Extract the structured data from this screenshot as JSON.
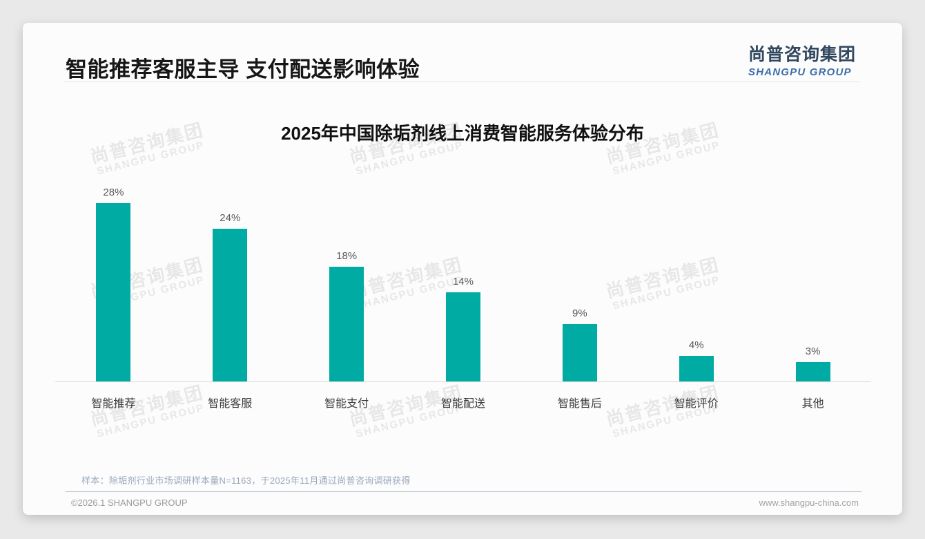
{
  "header": {
    "title": "智能推荐客服主导 支付配送影响体验"
  },
  "logo": {
    "chinese": "尚普咨询集团",
    "english": "SHANGPU GROUP"
  },
  "watermark": {
    "text_cn": "尚普咨询集团",
    "text_en": "SHANGPU GROUP"
  },
  "chart_data": {
    "type": "bar",
    "title": "2025年中国除垢剂线上消费智能服务体验分布",
    "categories": [
      "智能推荐",
      "智能客服",
      "智能支付",
      "智能配送",
      "智能售后",
      "智能评价",
      "其他"
    ],
    "values": [
      28,
      24,
      18,
      14,
      9,
      4,
      3
    ],
    "unit": "%",
    "value_labels": [
      "28%",
      "24%",
      "18%",
      "14%",
      "9%",
      "4%",
      "3%"
    ],
    "bar_color": "#00aba4",
    "xlabel": "",
    "ylabel": "",
    "ylim": [
      0,
      30
    ],
    "grid": false,
    "legend": "none",
    "baseline_color": "#d9d9d9"
  },
  "notes": {
    "source": "样本：除垢剂行业市场调研样本量N=1163，于2025年11月通过尚普咨询调研获得"
  },
  "footer": {
    "copyright": "©2026.1 SHANGPU GROUP",
    "website": "www.shangpu-china.com"
  }
}
